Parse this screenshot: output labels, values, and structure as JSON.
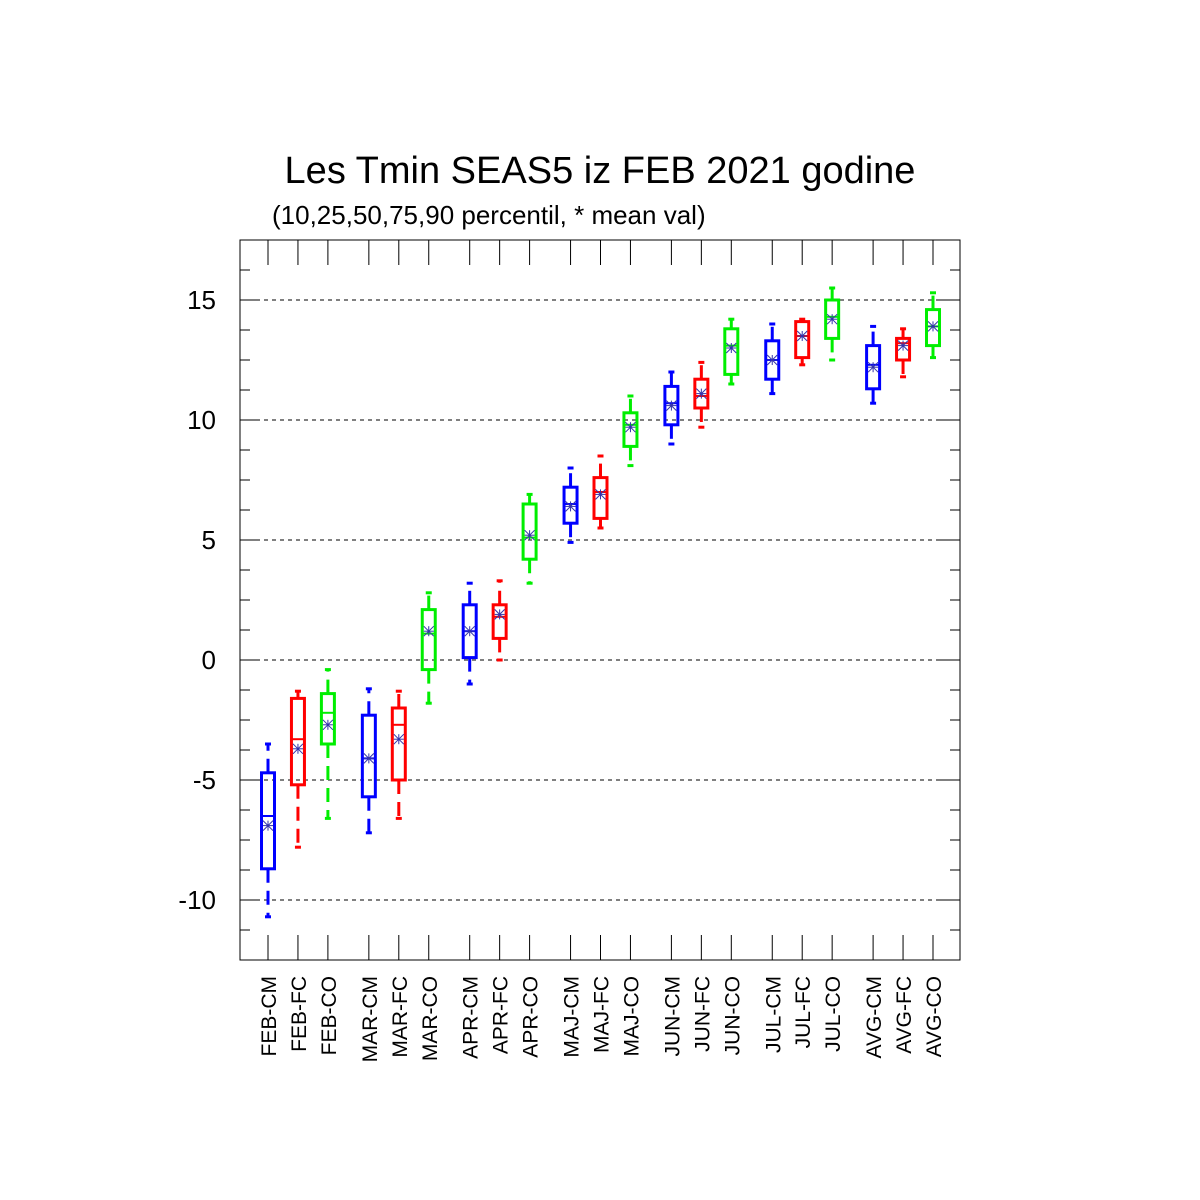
{
  "chart_data": {
    "type": "boxplot",
    "title": "Les Tmin SEAS5 iz FEB 2021 godine",
    "subtitle": "(10,25,50,75,90 percentil, * mean val)",
    "ylim": [
      -12.5,
      17.5
    ],
    "yticks": [
      -10,
      -5,
      0,
      5,
      10,
      15
    ],
    "ytick_labels": [
      "-10",
      "-5",
      "0",
      "5",
      "10",
      "15"
    ],
    "grid": "horizontal dashed at major ticks",
    "colors": {
      "CM": "#0000ff",
      "FC": "#ff0000",
      "CO": "#00ee00",
      "mean": "#3333aa"
    },
    "boxes": [
      {
        "label": "FEB-CM",
        "kind": "CM",
        "p10": -10.7,
        "p25": -8.7,
        "p50": -6.5,
        "p75": -4.7,
        "p90": -3.5,
        "mean": -6.9
      },
      {
        "label": "FEB-FC",
        "kind": "FC",
        "p10": -7.8,
        "p25": -5.2,
        "p50": -3.3,
        "p75": -1.6,
        "p90": -1.3,
        "mean": -3.7
      },
      {
        "label": "FEB-CO",
        "kind": "CO",
        "p10": -6.6,
        "p25": -3.5,
        "p50": -2.2,
        "p75": -1.4,
        "p90": -0.4,
        "mean": -2.7
      },
      {
        "label": "MAR-CM",
        "kind": "CM",
        "p10": -7.2,
        "p25": -5.7,
        "p50": -4.1,
        "p75": -2.3,
        "p90": -1.2,
        "mean": -4.1
      },
      {
        "label": "MAR-FC",
        "kind": "FC",
        "p10": -6.6,
        "p25": -5.0,
        "p50": -2.7,
        "p75": -2.0,
        "p90": -1.3,
        "mean": -3.3
      },
      {
        "label": "MAR-CO",
        "kind": "CO",
        "p10": -1.8,
        "p25": -0.4,
        "p50": 1.1,
        "p75": 2.1,
        "p90": 2.8,
        "mean": 1.2
      },
      {
        "label": "APR-CM",
        "kind": "CM",
        "p10": -1.0,
        "p25": 0.1,
        "p50": 1.2,
        "p75": 2.3,
        "p90": 3.2,
        "mean": 1.2
      },
      {
        "label": "APR-FC",
        "kind": "FC",
        "p10": 0.0,
        "p25": 0.9,
        "p50": 1.8,
        "p75": 2.3,
        "p90": 3.3,
        "mean": 1.9
      },
      {
        "label": "APR-CO",
        "kind": "CO",
        "p10": 3.2,
        "p25": 4.2,
        "p50": 5.1,
        "p75": 6.5,
        "p90": 6.9,
        "mean": 5.2
      },
      {
        "label": "MAJ-CM",
        "kind": "CM",
        "p10": 4.9,
        "p25": 5.7,
        "p50": 6.5,
        "p75": 7.2,
        "p90": 8.0,
        "mean": 6.4
      },
      {
        "label": "MAJ-FC",
        "kind": "FC",
        "p10": 5.5,
        "p25": 5.9,
        "p50": 7.0,
        "p75": 7.6,
        "p90": 8.5,
        "mean": 6.9
      },
      {
        "label": "MAJ-CO",
        "kind": "CO",
        "p10": 8.1,
        "p25": 8.9,
        "p50": 9.8,
        "p75": 10.3,
        "p90": 11.0,
        "mean": 9.7
      },
      {
        "label": "JUN-CM",
        "kind": "CM",
        "p10": 9.0,
        "p25": 9.8,
        "p50": 10.7,
        "p75": 11.4,
        "p90": 12.0,
        "mean": 10.6
      },
      {
        "label": "JUN-FC",
        "kind": "FC",
        "p10": 9.7,
        "p25": 10.5,
        "p50": 11.0,
        "p75": 11.7,
        "p90": 12.4,
        "mean": 11.1
      },
      {
        "label": "JUN-CO",
        "kind": "CO",
        "p10": 11.5,
        "p25": 11.9,
        "p50": 13.1,
        "p75": 13.8,
        "p90": 14.2,
        "mean": 13.0
      },
      {
        "label": "JUL-CM",
        "kind": "CM",
        "p10": 11.1,
        "p25": 11.7,
        "p50": 12.5,
        "p75": 13.3,
        "p90": 14.0,
        "mean": 12.5
      },
      {
        "label": "JUL-FC",
        "kind": "FC",
        "p10": 12.3,
        "p25": 12.6,
        "p50": 13.5,
        "p75": 14.1,
        "p90": 14.2,
        "mean": 13.5
      },
      {
        "label": "JUL-CO",
        "kind": "CO",
        "p10": 12.5,
        "p25": 13.4,
        "p50": 14.3,
        "p75": 15.0,
        "p90": 15.5,
        "mean": 14.2
      },
      {
        "label": "AVG-CM",
        "kind": "CM",
        "p10": 10.7,
        "p25": 11.3,
        "p50": 12.3,
        "p75": 13.1,
        "p90": 13.9,
        "mean": 12.2
      },
      {
        "label": "AVG-FC",
        "kind": "FC",
        "p10": 11.8,
        "p25": 12.5,
        "p50": 13.2,
        "p75": 13.4,
        "p90": 13.8,
        "mean": 13.1
      },
      {
        "label": "AVG-CO",
        "kind": "CO",
        "p10": 12.6,
        "p25": 13.1,
        "p50": 13.9,
        "p75": 14.6,
        "p90": 15.3,
        "mean": 13.9
      }
    ]
  }
}
